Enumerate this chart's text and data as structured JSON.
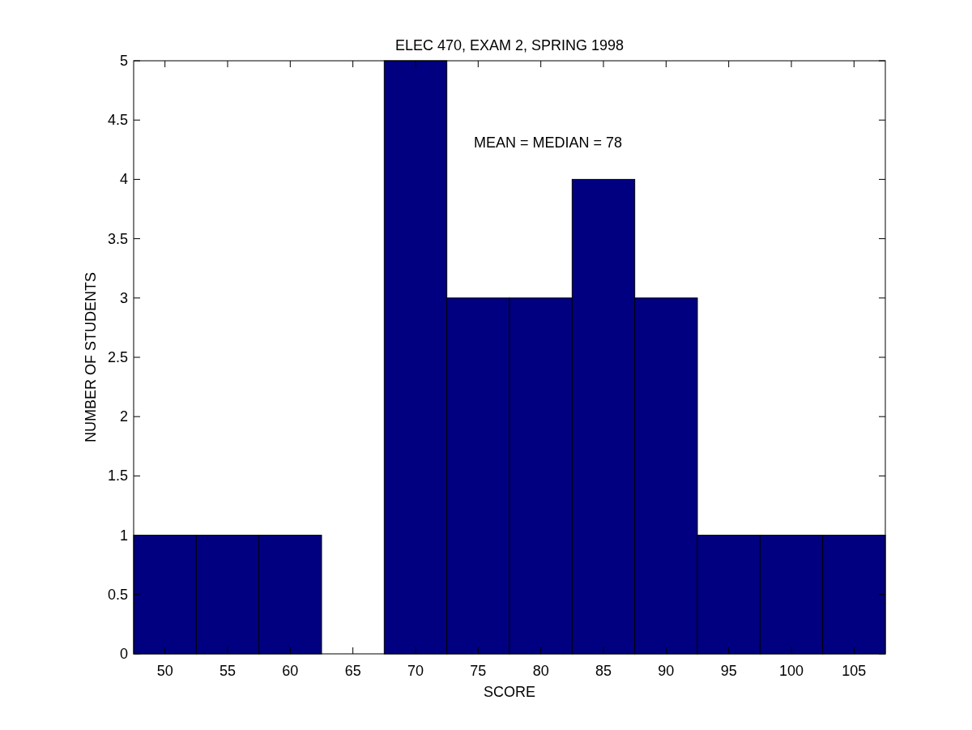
{
  "chart_data": {
    "type": "histogram",
    "title": "ELEC 470, EXAM 2, SPRING 1998",
    "xlabel": "SCORE",
    "ylabel": "NUMBER OF STUDENTS",
    "annotations": [
      "MEAN = MEDIAN = 78"
    ],
    "bins": [
      47.5,
      52.5,
      57.5,
      62.5,
      67.5,
      72.5,
      77.5,
      82.5,
      87.5,
      92.5,
      97.5,
      102.5,
      107.5
    ],
    "values": [
      1,
      1,
      1,
      0,
      5,
      3,
      3,
      4,
      3,
      1,
      1,
      1
    ],
    "color": "#000080",
    "xlim": [
      47.5,
      107.5
    ],
    "xticks": [
      50,
      55,
      60,
      65,
      70,
      75,
      80,
      85,
      90,
      95,
      100,
      105
    ],
    "ylim": [
      0,
      5
    ],
    "yticks": [
      0,
      0.5,
      1,
      1.5,
      2,
      2.5,
      3,
      3.5,
      4,
      4.5,
      5
    ],
    "grid": false
  }
}
